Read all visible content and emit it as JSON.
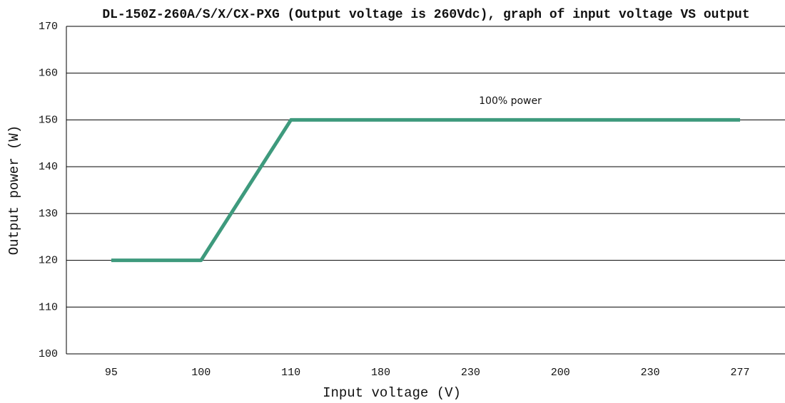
{
  "chart_data": {
    "type": "line",
    "title": "DL-150Z-260A/S/X/CX-PXG (Output voltage is 260Vdc), graph of input voltage VS output",
    "x_label": "Input voltage (V)",
    "y_label": "Output power (W)",
    "annotation": "100% power",
    "categories": [
      "95",
      "100",
      "110",
      "180",
      "230",
      "200",
      "230",
      "277"
    ],
    "series": [
      {
        "color": "#3e9a7d",
        "values": [
          120,
          120,
          150,
          150,
          150,
          150,
          150,
          150
        ]
      }
    ],
    "ylim": [
      100,
      170
    ],
    "yticks": [
      100,
      110,
      120,
      130,
      140,
      150,
      160,
      170
    ],
    "grid": true
  }
}
